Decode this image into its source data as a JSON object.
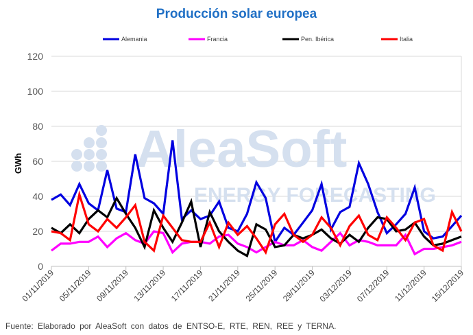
{
  "chart_data": {
    "type": "line",
    "title": "Producción solar europea",
    "ylabel": "GWh",
    "xlabel": "",
    "ylim": [
      0,
      120
    ],
    "yticks": [
      0,
      20,
      40,
      60,
      80,
      100,
      120
    ],
    "grid": true,
    "legend_position": "top",
    "x_start": "01/11/2019",
    "xtick_labels": [
      "01/11/2019",
      "05/11/2019",
      "09/11/2019",
      "13/11/2019",
      "17/11/2019",
      "21/11/2019",
      "25/11/2019",
      "29/11/2019",
      "03/12/2019",
      "07/12/2019",
      "11/12/2019",
      "15/12/2019"
    ],
    "series": [
      {
        "name": "Alemania",
        "color": "#0000e0",
        "values": [
          38,
          41,
          35,
          47,
          36,
          32,
          55,
          33,
          31,
          64,
          39,
          36,
          30,
          72,
          27,
          32,
          27,
          29,
          37,
          22,
          20,
          30,
          48,
          39,
          14,
          22,
          18,
          25,
          32,
          47,
          21,
          31,
          34,
          59,
          47,
          31,
          19,
          24,
          30,
          45,
          20,
          16,
          17,
          23,
          29
        ]
      },
      {
        "name": "Francia",
        "color": "#ff00ff",
        "values": [
          9,
          13,
          13,
          14,
          14,
          17,
          11,
          16,
          19,
          15,
          13,
          20,
          19,
          8,
          13,
          14,
          14,
          13,
          17,
          18,
          13,
          11,
          8,
          11,
          14,
          12,
          12,
          15,
          11,
          9,
          14,
          19,
          12,
          15,
          14,
          12,
          12,
          12,
          18,
          7,
          10,
          10,
          11,
          12,
          14
        ]
      },
      {
        "name": "Pen. Ibérica",
        "color": "#000000",
        "values": [
          22,
          19,
          24,
          19,
          27,
          32,
          28,
          39,
          30,
          22,
          11,
          32,
          22,
          14,
          25,
          37,
          11,
          31,
          20,
          14,
          9,
          6,
          24,
          21,
          11,
          12,
          18,
          16,
          18,
          21,
          16,
          13,
          18,
          14,
          22,
          28,
          27,
          20,
          21,
          25,
          17,
          12,
          13,
          15,
          17
        ]
      },
      {
        "name": "Italia",
        "color": "#ff0000",
        "values": [
          20,
          19,
          15,
          41,
          24,
          20,
          27,
          22,
          28,
          35,
          14,
          9,
          29,
          22,
          15,
          14,
          14,
          25,
          11,
          25,
          18,
          23,
          16,
          8,
          24,
          30,
          18,
          14,
          18,
          28,
          22,
          12,
          23,
          29,
          18,
          15,
          28,
          22,
          15,
          25,
          27,
          12,
          9,
          31,
          20
        ]
      }
    ]
  },
  "watermark": {
    "brand": "AleaSoft",
    "tagline": "ENERGY FORECASTING"
  },
  "source": "Fuente: Elaborado por AleaSoft con datos de ENTSO-E, RTE, REN, REE y TERNA."
}
